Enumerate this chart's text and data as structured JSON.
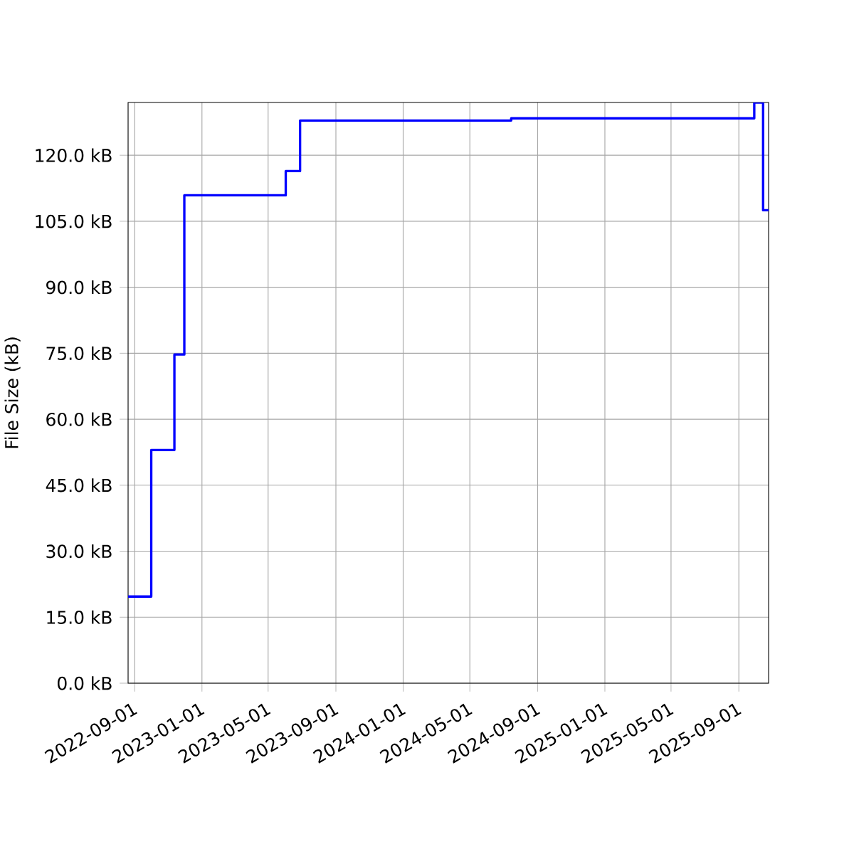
{
  "chart_data": {
    "type": "step",
    "ylabel": "File Size (kB)",
    "x": [
      "2022-08-20",
      "2022-10-01",
      "2022-11-12",
      "2022-11-30",
      "2023-06-02",
      "2023-06-28",
      "2024-07-15",
      "2025-09-29",
      "2025-10-15",
      "2025-10-25"
    ],
    "series": [
      {
        "color": "#0000ff",
        "values": [
          19.7,
          53.0,
          74.7,
          110.9,
          116.4,
          127.9,
          128.4,
          132,
          107.5,
          107.5
        ]
      }
    ],
    "xlim": [
      "2022-08-20",
      "2025-10-25"
    ],
    "xticks": [
      "2022-09-01",
      "2023-01-01",
      "2023-05-01",
      "2023-09-01",
      "2024-01-01",
      "2024-05-01",
      "2024-09-01",
      "2025-01-01",
      "2025-05-01",
      "2025-09-01"
    ],
    "ylim": [
      0,
      132
    ],
    "yticks": [
      {
        "value": 0,
        "label": "0.0 kB"
      },
      {
        "value": 15,
        "label": "15.0 kB"
      },
      {
        "value": 30,
        "label": "30.0 kB"
      },
      {
        "value": 45,
        "label": "45.0 kB"
      },
      {
        "value": 60,
        "label": "60.0 kB"
      },
      {
        "value": 75,
        "label": "75.0 kB"
      },
      {
        "value": 90,
        "label": "90.0 kB"
      },
      {
        "value": 105,
        "label": "105.0 kB"
      },
      {
        "value": 120,
        "label": "120.0 kB"
      }
    ],
    "grid": true,
    "marker": "none",
    "line_style": "solid"
  }
}
